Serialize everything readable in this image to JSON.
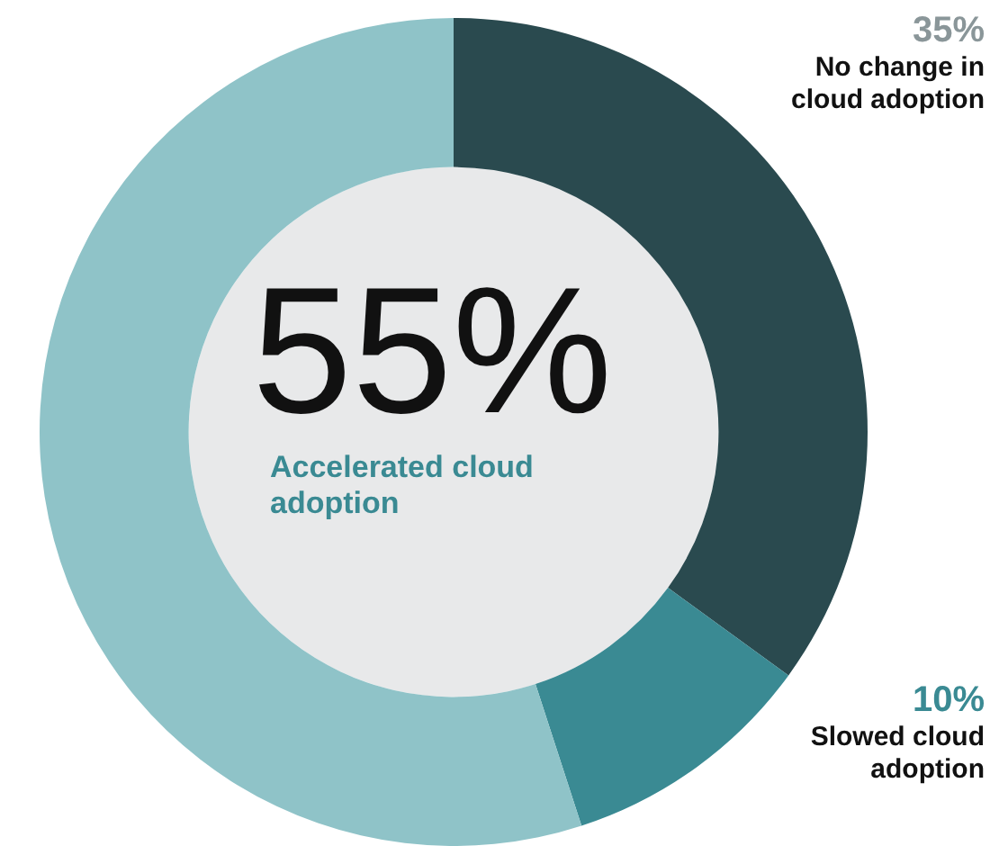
{
  "chart_data": {
    "type": "donut",
    "categories": [
      "No change in cloud adoption",
      "Slowed cloud adoption",
      "Accelerated cloud adoption"
    ],
    "values": [
      35,
      10,
      55
    ],
    "colors": [
      "#2a4a4f",
      "#3a8a93",
      "#8fc3c8"
    ],
    "value_labels": [
      "35%",
      "10%",
      "55%"
    ],
    "legend": false
  }
}
